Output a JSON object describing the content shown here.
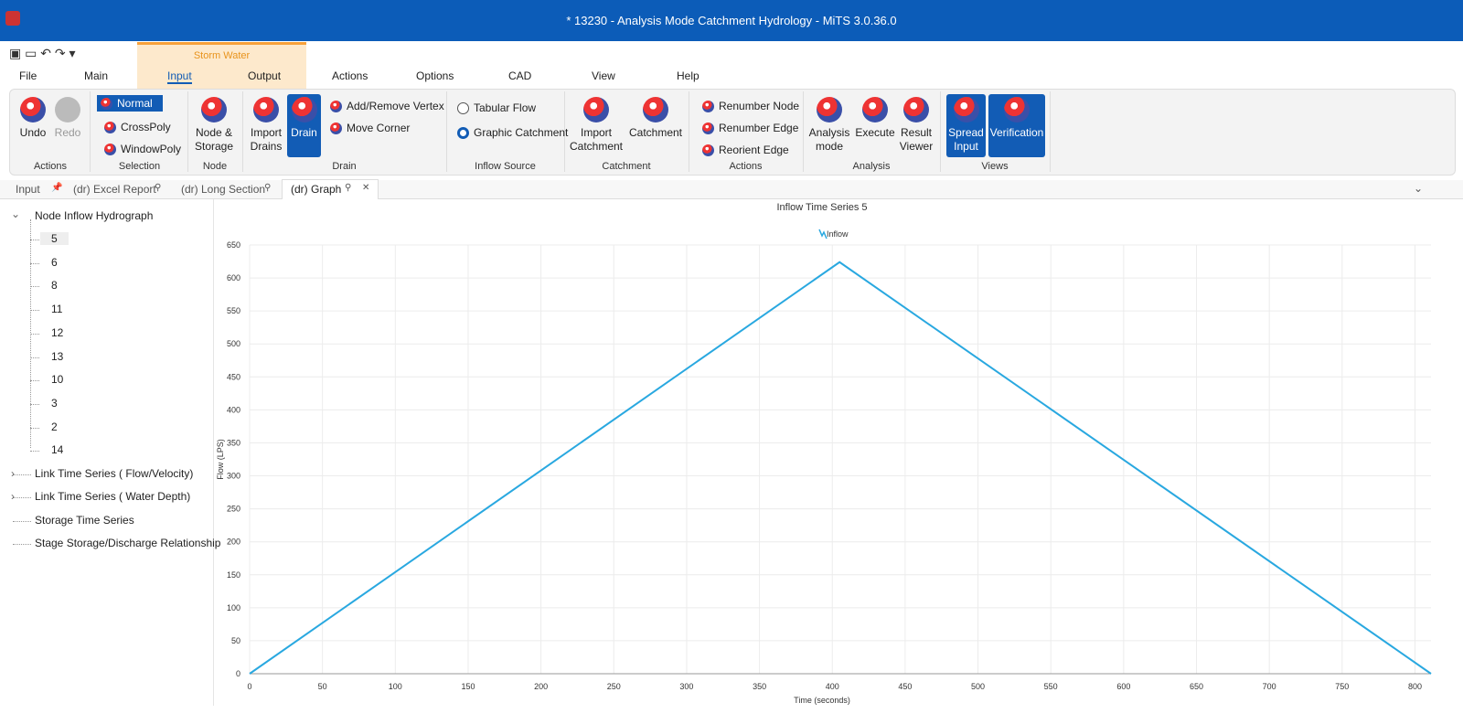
{
  "window": {
    "title": "* 13230 - Analysis Mode Catchment Hydrology - MiTS 3.0.36.0"
  },
  "ribbon": {
    "context_tab": "Storm Water",
    "tabs": [
      "File",
      "Main",
      "Input",
      "Output",
      "Actions",
      "Options",
      "CAD",
      "View",
      "Help"
    ],
    "groups": [
      {
        "label": "Actions",
        "items": [
          "Undo",
          "Redo"
        ]
      },
      {
        "label": "Selection",
        "items": [
          "Normal",
          "CrossPoly",
          "WindowPoly"
        ]
      },
      {
        "label": "Node",
        "items": [
          "Node & Storage"
        ]
      },
      {
        "label": "Drain",
        "items": [
          "Import Drains",
          "Drain",
          "Add/Remove Vertex",
          "Move Corner"
        ]
      },
      {
        "label": "Inflow Source",
        "items": [
          "Tabular Flow",
          "Graphic Catchment"
        ]
      },
      {
        "label": "Catchment",
        "items": [
          "Import Catchment",
          "Catchment"
        ]
      },
      {
        "label": "Actions",
        "items": [
          "Renumber Node",
          "Renumber Edge",
          "Reorient Edge"
        ]
      },
      {
        "label": "Analysis",
        "items": [
          "Analysis mode",
          "Execute",
          "Result Viewer"
        ]
      },
      {
        "label": "Views",
        "items": [
          "Spread Input",
          "Verification"
        ]
      }
    ]
  },
  "doc_tabs": [
    "Input",
    "(dr) Excel Report",
    "(dr) Long Section",
    "(dr) Graph"
  ],
  "tree": {
    "root": "Node Inflow Hydrograph",
    "children": [
      "5",
      "6",
      "8",
      "11",
      "12",
      "13",
      "10",
      "3",
      "2",
      "14"
    ],
    "others": [
      "Link Time Series ( Flow/Velocity)",
      "Link Time Series ( Water Depth)",
      "Storage Time Series",
      "Stage Storage/Discharge Relationship"
    ]
  },
  "chart_data": {
    "type": "line",
    "title": "Inflow Time Series 5",
    "x_label": "Time (seconds)",
    "y_label": "Flow (LPS)",
    "x": [
      0,
      405,
      811
    ],
    "series": [
      {
        "name": "Inflow",
        "color": "#29a8e0",
        "values": [
          0,
          624,
          0
        ]
      }
    ],
    "xlim": [
      0,
      811
    ],
    "ylim": [
      0,
      650
    ],
    "xticks": [
      0,
      50,
      100,
      150,
      200,
      250,
      300,
      350,
      400,
      450,
      500,
      550,
      600,
      650,
      700,
      750,
      800
    ],
    "yticks": [
      0,
      50,
      100,
      150,
      200,
      250,
      300,
      350,
      400,
      450,
      500,
      550,
      600,
      650
    ],
    "grid": true,
    "legend": "top"
  }
}
